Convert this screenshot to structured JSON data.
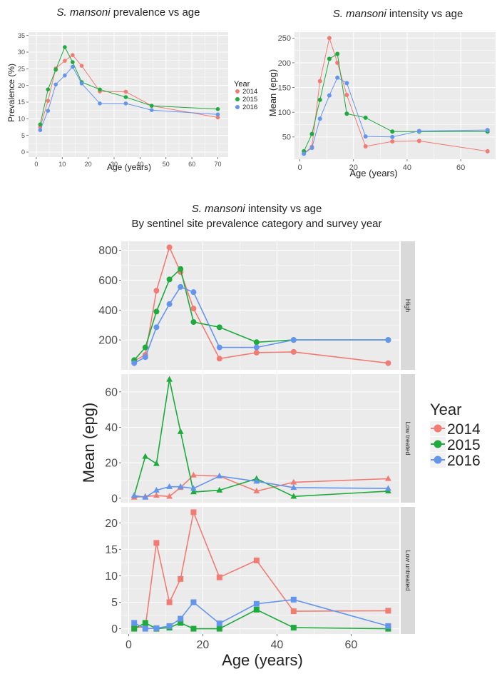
{
  "colors": {
    "y2014": "#F07C73",
    "y2015": "#1EAA3C",
    "y2016": "#6495ED",
    "panel_bg": "#EBEBEB",
    "strip_bg": "#D9D9D9",
    "grid": "#FFFFFF",
    "tick_text": "#4D4D4D"
  },
  "chart_data": [
    {
      "id": "prevalence",
      "type": "line",
      "title_italic": "S. mansoni",
      "title_rest": " prevalence vs age",
      "xlabel": "Age (years)",
      "ylabel": "Prevalence (%)",
      "xlim": [
        -3,
        74
      ],
      "ylim": [
        -1.5,
        36
      ],
      "xticks": [
        0,
        10,
        20,
        30,
        40,
        50,
        60,
        70
      ],
      "yticks": [
        0,
        5,
        10,
        15,
        20,
        25,
        30,
        35
      ],
      "grid": true,
      "legend": {
        "title": "Year",
        "position": "right",
        "entries": [
          "2014",
          "2015",
          "2016"
        ]
      },
      "x": [
        1.5,
        4.5,
        7.5,
        11,
        14,
        17.5,
        24.5,
        34.5,
        44.5,
        70
      ],
      "series": [
        {
          "name": "2014",
          "values": [
            7.5,
            15.4,
            25.1,
            27.4,
            29.1,
            25.9,
            18.2,
            18.1,
            13.9,
            10.4
          ]
        },
        {
          "name": "2015",
          "values": [
            8.3,
            18.8,
            24.7,
            31.5,
            27.0,
            21.0,
            18.8,
            16.5,
            13.9,
            12.9
          ]
        },
        {
          "name": "2016",
          "values": [
            6.6,
            12.4,
            20.3,
            23.0,
            25.6,
            20.6,
            14.6,
            14.6,
            12.6,
            11.3
          ]
        }
      ]
    },
    {
      "id": "intensity",
      "type": "line",
      "title_italic": "S. mansoni",
      "title_rest": " intensity vs age",
      "xlabel": "Age (years)",
      "ylabel": "Mean (epg)",
      "xlim": [
        -2,
        73
      ],
      "ylim": [
        5,
        262
      ],
      "xticks": [
        0,
        20,
        40,
        60
      ],
      "yticks": [
        50,
        100,
        150,
        200,
        250
      ],
      "grid": true,
      "x": [
        1.5,
        4.5,
        7.5,
        11,
        14,
        17.5,
        24.5,
        34.5,
        44.5,
        70
      ],
      "series": [
        {
          "name": "2014",
          "values": [
            17,
            30,
            163,
            250,
            200,
            135,
            31,
            41,
            42,
            21
          ]
        },
        {
          "name": "2015",
          "values": [
            21,
            56,
            125,
            208,
            218,
            97,
            89,
            61,
            61,
            61
          ]
        },
        {
          "name": "2016",
          "values": [
            16,
            28,
            87,
            134,
            170,
            159,
            51,
            50,
            62,
            64
          ]
        }
      ]
    },
    {
      "id": "facets",
      "type": "line",
      "title_italic": "S. mansoni",
      "title_rest": " intensity vs age",
      "subtitle": "By sentinel site prevalence category and survey year",
      "xlabel": "Age (years)",
      "ylabel": "Mean (epg)",
      "xlim": [
        -2,
        73
      ],
      "xticks": [
        0,
        20,
        40,
        60
      ],
      "grid": true,
      "legend": {
        "title": "Year",
        "position": "right",
        "entries": [
          "2014",
          "2015",
          "2016"
        ]
      },
      "x": [
        1.5,
        4.5,
        7.5,
        11,
        14,
        17.5,
        24.5,
        34.5,
        44.5,
        70
      ],
      "panels": [
        {
          "strip": "High",
          "marker": "circle",
          "ylim": [
            0,
            860
          ],
          "yticks": [
            200,
            400,
            600,
            800
          ],
          "series": [
            {
              "name": "2014",
              "values": [
                60,
                100,
                530,
                820,
                655,
                410,
                75,
                115,
                120,
                45
              ]
            },
            {
              "name": "2015",
              "values": [
                65,
                150,
                390,
                605,
                675,
                320,
                285,
                185,
                200,
                200
              ]
            },
            {
              "name": "2016",
              "values": [
                45,
                85,
                285,
                440,
                555,
                520,
                150,
                150,
                200,
                200
              ]
            }
          ]
        },
        {
          "strip": "Low treated",
          "marker": "triangle",
          "ylim": [
            -2.5,
            70
          ],
          "yticks": [
            0,
            20,
            40,
            60
          ],
          "series": [
            {
              "name": "2014",
              "values": [
                0.5,
                1,
                1.5,
                1,
                6,
                13,
                12.5,
                4,
                9,
                11
              ]
            },
            {
              "name": "2015",
              "values": [
                1.5,
                23.5,
                19.5,
                67,
                37.5,
                3.5,
                4.5,
                11,
                1,
                4
              ]
            },
            {
              "name": "2016",
              "values": [
                1.5,
                0.5,
                4.5,
                6.5,
                6.5,
                5.5,
                12.5,
                9.5,
                6,
                5.5
              ]
            }
          ]
        },
        {
          "strip": "Low untreated",
          "marker": "square",
          "ylim": [
            -1,
            23
          ],
          "yticks": [
            0,
            5,
            10,
            15,
            20
          ],
          "series": [
            {
              "name": "2014",
              "values": [
                0.2,
                0.3,
                16.2,
                5,
                9.4,
                22,
                9.7,
                12.9,
                3.3,
                3.4
              ]
            },
            {
              "name": "2015",
              "values": [
                0,
                1.1,
                0,
                0.2,
                1.1,
                0,
                0,
                3.6,
                0.2,
                0
              ]
            },
            {
              "name": "2016",
              "values": [
                1.1,
                0,
                0.1,
                0.5,
                1.9,
                5,
                1,
                4.7,
                5.5,
                0.5
              ]
            }
          ]
        }
      ]
    }
  ]
}
